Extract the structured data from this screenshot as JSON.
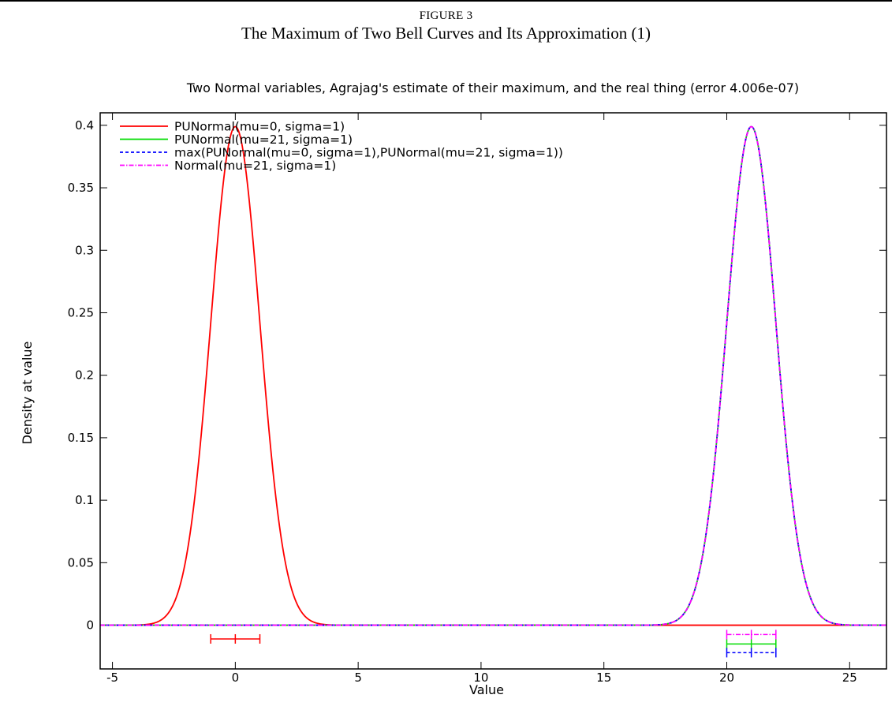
{
  "figure": {
    "label": "FIGURE 3",
    "title": "The Maximum of Two Bell Curves and Its Approximation (1)"
  },
  "chart_data": {
    "type": "line",
    "title": "Two Normal variables, Agrajag's estimate of their maximum, and the real thing (error 4.006e-07)",
    "xlabel": "Value",
    "ylabel": "Density at value",
    "xlim": [
      -5.5,
      26.5
    ],
    "ylim": [
      -0.035,
      0.41
    ],
    "x_ticks": [
      -5,
      0,
      5,
      10,
      15,
      20,
      25
    ],
    "x_tick_labels": [
      "-5",
      "0",
      "5",
      "10",
      "15",
      "20",
      "25"
    ],
    "y_ticks": [
      0,
      0.05,
      0.1,
      0.15,
      0.2,
      0.25,
      0.3,
      0.35,
      0.4
    ],
    "y_tick_labels": [
      "0",
      "0.05",
      "0.1",
      "0.15",
      "0.2",
      "0.25",
      "0.3",
      "0.35",
      "0.4"
    ],
    "grid": false,
    "legend_position": "top-left",
    "series": [
      {
        "name": "PUNormal(mu=0, sigma=1)",
        "mu": 0,
        "sigma": 1,
        "color": "#ff0000",
        "dash": "solid",
        "marker_y": -0.011
      },
      {
        "name": "PUNormal(mu=21, sigma=1)",
        "mu": 21,
        "sigma": 1,
        "color": "#00dd00",
        "dash": "solid",
        "marker_y": -0.015
      },
      {
        "name": "max(PUNormal(mu=0, sigma=1),PUNormal(mu=21, sigma=1))",
        "mu": 21,
        "sigma": 1,
        "color": "#0000ff",
        "dash": "dashed",
        "marker_y": -0.022
      },
      {
        "name": "Normal(mu=21, sigma=1)",
        "mu": 21,
        "sigma": 1,
        "color": "#ff00ff",
        "dash": "dashdot",
        "marker_y": -0.0075
      }
    ]
  }
}
